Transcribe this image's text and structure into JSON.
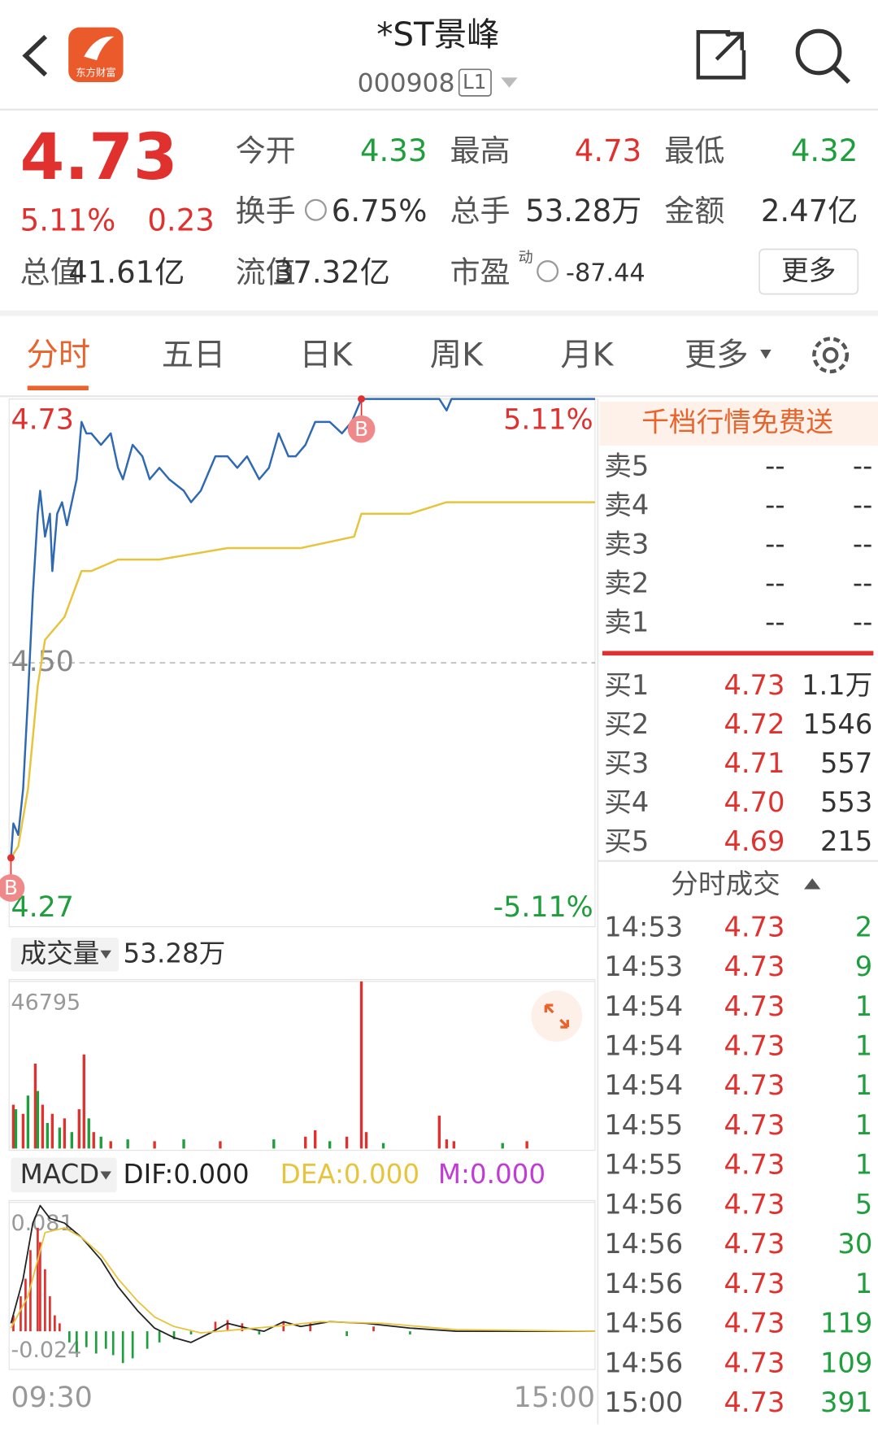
{
  "header": {
    "title": "*ST景峰",
    "code": "000908",
    "level": "L1",
    "logo_text": "东方财富"
  },
  "quote": {
    "price": "4.73",
    "change_pct": "5.11%",
    "change": "0.23",
    "stats": [
      {
        "label": "今开",
        "value": "4.33"
      },
      {
        "label": "最高",
        "value": "4.73"
      },
      {
        "label": "最低",
        "value": "4.32"
      },
      {
        "label": "换手",
        "value": "6.75%"
      },
      {
        "label": "总手",
        "value": "53.28万"
      },
      {
        "label": "金额",
        "value": "2.47亿"
      },
      {
        "label": "总值",
        "value": "41.61亿"
      },
      {
        "label": "流值",
        "value": "37.32亿"
      },
      {
        "label": "市盈",
        "superscript": "动",
        "value": "-87.44"
      }
    ],
    "more": "更多"
  },
  "tabs": [
    "分时",
    "五日",
    "日K",
    "周K",
    "月K",
    "更多"
  ],
  "chart_data": [
    {
      "type": "line",
      "xlim": [
        0,
        240
      ],
      "xticks": [
        {
          "value": 0,
          "label": "09:30"
        },
        {
          "value": 240,
          "label": "15:00"
        }
      ],
      "ylim": [
        4.27,
        4.73
      ],
      "yticks": [
        4.73,
        {
          "value": 4.5,
          "label": "4.50"
        },
        4.27
      ],
      "y2lim": [
        -5.11,
        5.11
      ],
      "y2ticks": [
        {
          "value": 5.11,
          "label": "5.11%"
        },
        {
          "value": -5.11,
          "label": "-5.11%"
        }
      ],
      "series": [
        {
          "color": "#2f68b3",
          "x": [
            0,
            1,
            3,
            5,
            7,
            9,
            11,
            12,
            14,
            16,
            17,
            19,
            21,
            23,
            25,
            27,
            29,
            31,
            33,
            37,
            41,
            44,
            46,
            50,
            54,
            57,
            61,
            65,
            71,
            74,
            78,
            84,
            89,
            93,
            97,
            102,
            106,
            110,
            114,
            117,
            121,
            125,
            131,
            136,
            140,
            144,
            176,
            179,
            181,
            240
          ],
          "values": [
            4.33,
            4.36,
            4.35,
            4.39,
            4.47,
            4.56,
            4.63,
            4.65,
            4.61,
            4.63,
            4.58,
            4.63,
            4.64,
            4.62,
            4.64,
            4.66,
            4.71,
            4.7,
            4.7,
            4.69,
            4.7,
            4.67,
            4.66,
            4.69,
            4.68,
            4.66,
            4.67,
            4.66,
            4.65,
            4.64,
            4.65,
            4.68,
            4.68,
            4.67,
            4.68,
            4.66,
            4.67,
            4.7,
            4.68,
            4.68,
            4.69,
            4.71,
            4.71,
            4.7,
            4.71,
            4.73,
            4.73,
            4.72,
            4.73,
            4.73
          ]
        },
        {
          "color": "#e8c33c",
          "x": [
            0,
            3,
            7,
            11,
            14,
            22,
            29,
            33,
            44,
            61,
            89,
            119,
            141,
            144,
            164,
            179,
            206,
            240
          ],
          "values": [
            4.33,
            4.34,
            4.39,
            4.48,
            4.52,
            4.54,
            4.58,
            4.58,
            4.59,
            4.59,
            4.6,
            4.6,
            4.61,
            4.63,
            4.63,
            4.64,
            4.64,
            4.64
          ]
        }
      ],
      "annotations": [
        {
          "text": "B",
          "x": 0,
          "y": 4.33
        },
        {
          "text": "B",
          "x": 144,
          "y": 4.73
        }
      ]
    },
    {
      "type": "bar",
      "title": "成交量",
      "subtitle": "53.28万",
      "xlim": [
        0,
        240
      ],
      "ylim": [
        0,
        46795
      ],
      "yticks": [
        46795
      ],
      "x": [
        1,
        2,
        5,
        7,
        10,
        11,
        13,
        15,
        17,
        20,
        22,
        25,
        28,
        30,
        32,
        34,
        37,
        41,
        48,
        59,
        71,
        86,
        108,
        121,
        125,
        131,
        138,
        144,
        146,
        153,
        176,
        179,
        182,
        202,
        212
      ],
      "values": [
        12270,
        11000,
        9720,
        14830,
        23780,
        16110,
        12270,
        7160,
        9720,
        5880,
        8440,
        4600,
        11000,
        26340,
        8440,
        4600,
        3320,
        2050,
        2560,
        2050,
        2560,
        2050,
        2560,
        3320,
        5110,
        2050,
        3320,
        46795,
        4600,
        1530,
        9210,
        2560,
        2050,
        1530,
        2050
      ],
      "colors": [
        "#e0312f",
        "#1e9e3c",
        "#e0312f",
        "#1e9e3c",
        "#e0312f",
        "#1e9e3c",
        "#e0312f",
        "#1e9e3c",
        "#e0312f",
        "#1e9e3c",
        "#e0312f",
        "#1e9e3c",
        "#e0312f",
        "#e0312f",
        "#1e9e3c",
        "#e0312f",
        "#1e9e3c",
        "#e0312f",
        "#1e9e3c",
        "#e0312f",
        "#1e9e3c",
        "#e0312f",
        "#1e9e3c",
        "#e0312f",
        "#e0312f",
        "#1e9e3c",
        "#e0312f",
        "#e0312f",
        "#e0312f",
        "#1e9e3c",
        "#e0312f",
        "#e0312f",
        "#e0312f",
        "#1e9e3c",
        "#e0312f"
      ]
    },
    {
      "type": "macd",
      "title": "MACD",
      "indicators": [
        "DIF:0.000",
        "DEA:0.000",
        "M:0.000"
      ],
      "xlim": [
        0,
        240
      ],
      "ylim": [
        -0.024,
        0.081
      ],
      "yticks": [
        0.081,
        -0.024
      ],
      "up_color": "#e0312f",
      "down_color": "#1e9e3c",
      "series": [
        {
          "color": "#222222",
          "x": [
            0,
            5,
            9,
            12,
            16,
            22,
            29,
            37,
            44,
            52,
            59,
            67,
            74,
            82,
            89,
            97,
            104,
            112,
            119,
            131,
            146,
            164,
            183,
            240
          ],
          "values": [
            0.005,
            0.033,
            0.068,
            0.079,
            0.071,
            0.068,
            0.059,
            0.045,
            0.028,
            0.013,
            0.002,
            -0.004,
            -0.007,
            -0.001,
            0.005,
            0.002,
            0,
            0.006,
            0.003,
            0.006,
            0.005,
            0.002,
            0,
            0
          ]
        },
        {
          "color": "#e8c33c",
          "x": [
            0,
            7,
            14,
            22,
            29,
            37,
            44,
            52,
            59,
            67,
            78,
            93,
            108,
            127,
            153,
            183,
            240
          ],
          "values": [
            0.002,
            0.022,
            0.062,
            0.065,
            0.059,
            0.048,
            0.033,
            0.019,
            0.009,
            0.003,
            -0.001,
            0.001,
            0.003,
            0.006,
            0.005,
            0.001,
            0
          ]
        }
      ],
      "histogram": {
        "x": [
          1,
          4,
          6,
          8,
          11,
          12,
          14,
          16,
          18,
          20,
          24,
          27,
          31,
          35,
          39,
          42,
          46,
          50,
          56,
          61,
          67,
          74,
          84,
          89,
          95,
          102,
          112,
          123,
          138,
          149,
          164
        ],
        "values": [
          0.01,
          0.022,
          0.033,
          0.051,
          0.065,
          0.056,
          0.039,
          0.022,
          0.01,
          0.005,
          -0.007,
          -0.013,
          -0.01,
          -0.014,
          -0.011,
          -0.015,
          -0.02,
          -0.017,
          -0.011,
          -0.007,
          -0.005,
          -0.002,
          0.006,
          0.007,
          0.005,
          -0.002,
          0.006,
          0.005,
          -0.003,
          0.003,
          -0.002
        ]
      }
    }
  ],
  "order_book": {
    "banner": "千档行情免费送",
    "asks": [
      {
        "label": "卖5",
        "price": "--",
        "volume": "--"
      },
      {
        "label": "卖4",
        "price": "--",
        "volume": "--"
      },
      {
        "label": "卖3",
        "price": "--",
        "volume": "--"
      },
      {
        "label": "卖2",
        "price": "--",
        "volume": "--"
      },
      {
        "label": "卖1",
        "price": "--",
        "volume": "--"
      }
    ],
    "bids": [
      {
        "label": "买1",
        "price": "4.73",
        "volume": "1.1万"
      },
      {
        "label": "买2",
        "price": "4.72",
        "volume": "1546"
      },
      {
        "label": "买3",
        "price": "4.71",
        "volume": "557"
      },
      {
        "label": "买4",
        "price": "4.70",
        "volume": "553"
      },
      {
        "label": "买5",
        "price": "4.69",
        "volume": "215"
      }
    ]
  },
  "trades": {
    "title": "分时成交",
    "rows": [
      [
        "14:53",
        "4.73",
        "2"
      ],
      [
        "14:53",
        "4.73",
        "9"
      ],
      [
        "14:54",
        "4.73",
        "1"
      ],
      [
        "14:54",
        "4.73",
        "1"
      ],
      [
        "14:54",
        "4.73",
        "1"
      ],
      [
        "14:55",
        "4.73",
        "1"
      ],
      [
        "14:55",
        "4.73",
        "1"
      ],
      [
        "14:56",
        "4.73",
        "5"
      ],
      [
        "14:56",
        "4.73",
        "30"
      ],
      [
        "14:56",
        "4.73",
        "1"
      ],
      [
        "14:56",
        "4.73",
        "119"
      ],
      [
        "14:56",
        "4.73",
        "109"
      ],
      [
        "15:00",
        "4.73",
        "391"
      ]
    ]
  }
}
